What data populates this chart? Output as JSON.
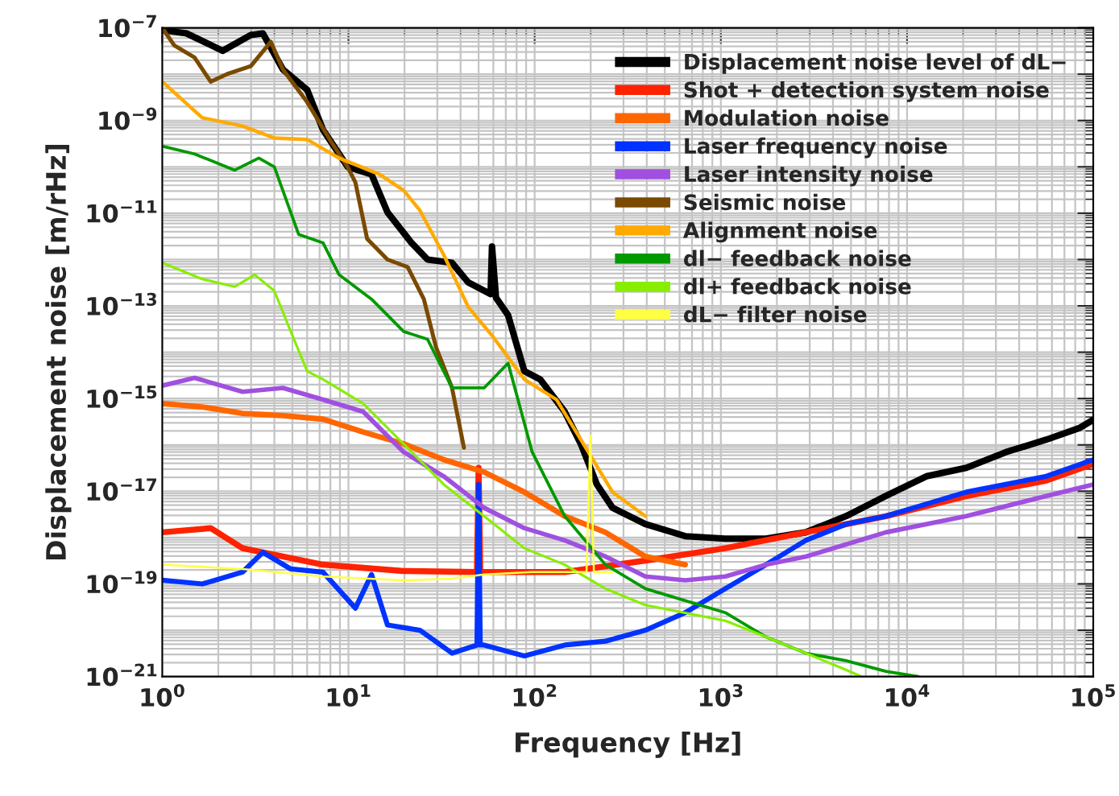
{
  "chart_data": {
    "type": "line",
    "xlabel": "Frequency [Hz]",
    "ylabel": "Displacement noise [m/rHz]",
    "log": "xy",
    "grid": true,
    "legend": "top right",
    "xlim": [
      1,
      100000
    ],
    "ylim": [
      1e-21,
      1e-07
    ],
    "xticks": [
      {
        "value": 1,
        "label": "10$^{0}$"
      },
      {
        "value": 10,
        "label": "10$^{1}$"
      },
      {
        "value": 100,
        "label": "10$^{2}$"
      },
      {
        "value": 1000,
        "label": "10$^{3}$"
      },
      {
        "value": 10000,
        "label": "10$^{4}$"
      },
      {
        "value": 100000,
        "label": "10$^{5}$"
      }
    ],
    "yticks": [
      {
        "value": 1e-21,
        "label": "10$^{−21}$"
      },
      {
        "value": 1e-20,
        "label": null
      },
      {
        "value": 1e-19,
        "label": "10$^{−19}$"
      },
      {
        "value": 1e-18,
        "label": null
      },
      {
        "value": 1e-17,
        "label": "10$^{−17}$"
      },
      {
        "value": 1e-16,
        "label": null
      },
      {
        "value": 1e-15,
        "label": "10$^{−15}$"
      },
      {
        "value": 1e-14,
        "label": null
      },
      {
        "value": 1e-13,
        "label": "10$^{−13}$"
      },
      {
        "value": 1e-12,
        "label": null
      },
      {
        "value": 1e-11,
        "label": "10$^{−11}$"
      },
      {
        "value": 1e-10,
        "label": null
      },
      {
        "value": 1e-09,
        "label": "10$^{−9}$"
      },
      {
        "value": 1e-08,
        "label": null
      },
      {
        "value": 1e-07,
        "label": "10$^{−7}$"
      }
    ],
    "series": [
      {
        "name": "Displacement noise level of dL−",
        "color": "#000000",
        "x": [
          1,
          1.35,
          2.11,
          2.99,
          3.47,
          4.45,
          6.0,
          7.3,
          9.9,
          13.3,
          16.2,
          21.8,
          26.6,
          36,
          44,
          58,
          59,
          62,
          72,
          88,
          107,
          145,
          177,
          216,
          262,
          393,
          644,
          1057,
          1745,
          2860,
          4700,
          7700,
          12700,
          20800,
          34000,
          56000,
          84000,
          100000
        ],
        "values": [
          9e-08,
          7.6e-08,
          3.2e-08,
          7e-08,
          7.6e-08,
          1.26e-08,
          4.6e-09,
          6.3e-10,
          1e-10,
          6.9e-11,
          1.05e-11,
          2.3e-12,
          1e-12,
          8.5e-13,
          3.2e-13,
          1.8e-13,
          1.9e-12,
          1.5e-13,
          6.3e-14,
          3.9e-15,
          2.6e-15,
          5.2e-16,
          1.05e-16,
          1.4e-17,
          4.4e-18,
          1.95e-18,
          1.07e-18,
          9.5e-19,
          9.5e-19,
          1.3e-18,
          2.9e-18,
          7.9e-18,
          2.1e-17,
          3.2e-17,
          7e-17,
          1.3e-16,
          2.3e-16,
          3.5e-16
        ]
      },
      {
        "name": "Shot + detection system noise",
        "color": "#ff2200",
        "x": [
          1,
          1.82,
          2.7,
          7.3,
          19.8,
          49,
          50,
          51,
          53.5,
          145,
          393,
          1057,
          2860,
          7700,
          20800,
          56000,
          100000
        ],
        "values": [
          1.3e-18,
          1.6e-18,
          5.9e-19,
          2.6e-19,
          1.9e-19,
          1.8e-19,
          3.2e-17,
          1.8e-19,
          1.8e-19,
          1.8e-19,
          3.2e-19,
          5.9e-19,
          1.3e-18,
          2.9e-18,
          7.9e-18,
          1.7e-17,
          3.9e-17
        ]
      },
      {
        "name": "Modulation noise",
        "color": "#ff6600",
        "x": [
          1,
          1.64,
          2.7,
          4.45,
          7.3,
          12,
          19.8,
          32.5,
          53.5,
          88,
          145,
          240,
          393,
          644
        ],
        "values": [
          7.8e-16,
          6.6e-16,
          4.8e-16,
          4.3e-16,
          3.6e-16,
          1.9e-16,
          1.05e-16,
          4.8e-17,
          2.6e-17,
          9.6e-18,
          2.9e-18,
          1.3e-18,
          3.9e-19,
          2.6e-19
        ]
      },
      {
        "name": "Laser frequency noise",
        "color": "#0033ff",
        "x": [
          1,
          1.64,
          2.7,
          3.47,
          4.9,
          7.3,
          10.9,
          13.3,
          16.2,
          24.2,
          36,
          49,
          50,
          51,
          53.5,
          88,
          145,
          240,
          393,
          644,
          1057,
          1745,
          2860,
          4700,
          7700,
          20800,
          56000,
          100000
        ],
        "values": [
          1.2e-19,
          1e-19,
          1.8e-19,
          4.8e-19,
          2.1e-19,
          1.8e-19,
          3e-20,
          1.6e-19,
          1.3e-20,
          1e-20,
          3.2e-21,
          4.8e-21,
          1.4e-17,
          4.8e-21,
          4.8e-21,
          2.8e-21,
          4.8e-21,
          5.8e-21,
          1e-20,
          2.4e-20,
          7.9e-20,
          2.6e-19,
          8.7e-19,
          1.95e-18,
          2.9e-18,
          9.6e-18,
          2.1e-17,
          4.8e-17
        ]
      },
      {
        "name": "Laser intensity noise",
        "color": "#a050e0",
        "x": [
          1,
          1.49,
          2.7,
          4.45,
          7.3,
          12,
          19.8,
          32.5,
          53.5,
          88,
          145,
          240,
          393,
          644,
          1057,
          1745,
          2860,
          7700,
          20800,
          56000,
          100000
        ],
        "values": [
          1.9e-15,
          2.8e-15,
          1.4e-15,
          1.7e-15,
          9.5e-16,
          5.2e-16,
          7e-17,
          2.1e-17,
          4.4e-18,
          1.6e-18,
          8.7e-19,
          3.9e-19,
          1.45e-19,
          1.2e-19,
          1.45e-19,
          2.6e-19,
          3.9e-19,
          1.3e-18,
          2.9e-18,
          7.9e-18,
          1.4e-17
        ]
      },
      {
        "name": "Seismic noise",
        "color": "#7a4a00",
        "x": [
          1,
          1.16,
          1.49,
          1.82,
          2.22,
          2.99,
          3.83,
          4.45,
          6.0,
          8.1,
          9.9,
          10.9,
          12.6,
          16.2,
          20.8,
          25.4,
          29.5,
          36,
          41.7
        ],
        "values": [
          1e-07,
          4.2e-08,
          2.3e-08,
          6.9e-09,
          1e-08,
          1.5e-08,
          5e-08,
          1.26e-08,
          2.5e-09,
          3.4e-10,
          1e-10,
          4.6e-11,
          2.8e-12,
          1e-12,
          6.9e-13,
          1.4e-13,
          1.3e-14,
          1.7e-15,
          8.7e-17
        ]
      },
      {
        "name": "Alignment noise",
        "color": "#ffaa00",
        "x": [
          1,
          1.64,
          2.7,
          4.0,
          6.0,
          8.9,
          14.7,
          19.8,
          24.2,
          32.5,
          44,
          59,
          88,
          131,
          177,
          262,
          393
        ],
        "values": [
          6.9e-09,
          1.15e-09,
          7.6e-10,
          4.2e-10,
          3.9e-10,
          1.55e-10,
          6.9e-11,
          3.1e-11,
          1.15e-11,
          1.26e-12,
          9.5e-14,
          2.3e-14,
          2.6e-15,
          9.5e-16,
          1.3e-16,
          9.6e-18,
          2.9e-18
        ]
      },
      {
        "name": "dl− feedback noise",
        "color": "#009900",
        "x": [
          1,
          1.49,
          2.45,
          3.3,
          4.0,
          5.4,
          7.3,
          8.9,
          13.3,
          19.8,
          26.6,
          36,
          53.5,
          72,
          97,
          145,
          240,
          393,
          1057,
          1745,
          2860,
          4700,
          7700,
          11500
        ],
        "values": [
          2.8e-10,
          1.9e-10,
          8.5e-11,
          1.55e-10,
          1e-10,
          3.5e-12,
          2.3e-12,
          4.7e-13,
          1.4e-13,
          2.8e-14,
          1.9e-14,
          1.7e-15,
          1.7e-15,
          5.8e-15,
          7e-17,
          2.9e-18,
          2.6e-19,
          7.9e-20,
          2.4e-20,
          7.2e-21,
          3.2e-21,
          2.2e-21,
          1.3e-21,
          1e-21
        ]
      },
      {
        "name": "dl+ feedback noise",
        "color": "#88ee00",
        "x": [
          1,
          1.64,
          2.45,
          3.14,
          4.0,
          4.9,
          6.0,
          7.3,
          12,
          19.8,
          32.5,
          53.5,
          88,
          145,
          240,
          393,
          1057,
          1745,
          2860,
          4700,
          5700
        ],
        "values": [
          8.5e-13,
          3.8e-13,
          2.6e-13,
          4.7e-13,
          2.1e-13,
          2.8e-14,
          3.9e-15,
          2.6e-15,
          7.8e-16,
          1.05e-16,
          1.4e-17,
          2.9e-18,
          5.9e-19,
          2.6e-19,
          7.9e-20,
          3.5e-20,
          1.6e-20,
          7.2e-21,
          3.2e-21,
          1.4e-21,
          1e-21
        ]
      },
      {
        "name": "dL− filter noise",
        "color": "#ffff44",
        "x": [
          1,
          2.7,
          7.3,
          19.8,
          36,
          53.5,
          97,
          190,
          199,
          208,
          262
        ],
        "values": [
          2.6e-19,
          2.1e-19,
          1.45e-19,
          1.2e-19,
          1.3e-19,
          1.6e-19,
          1.8e-19,
          1.8e-19,
          1.6e-16,
          1.8e-19,
          1.8e-19
        ]
      }
    ]
  }
}
